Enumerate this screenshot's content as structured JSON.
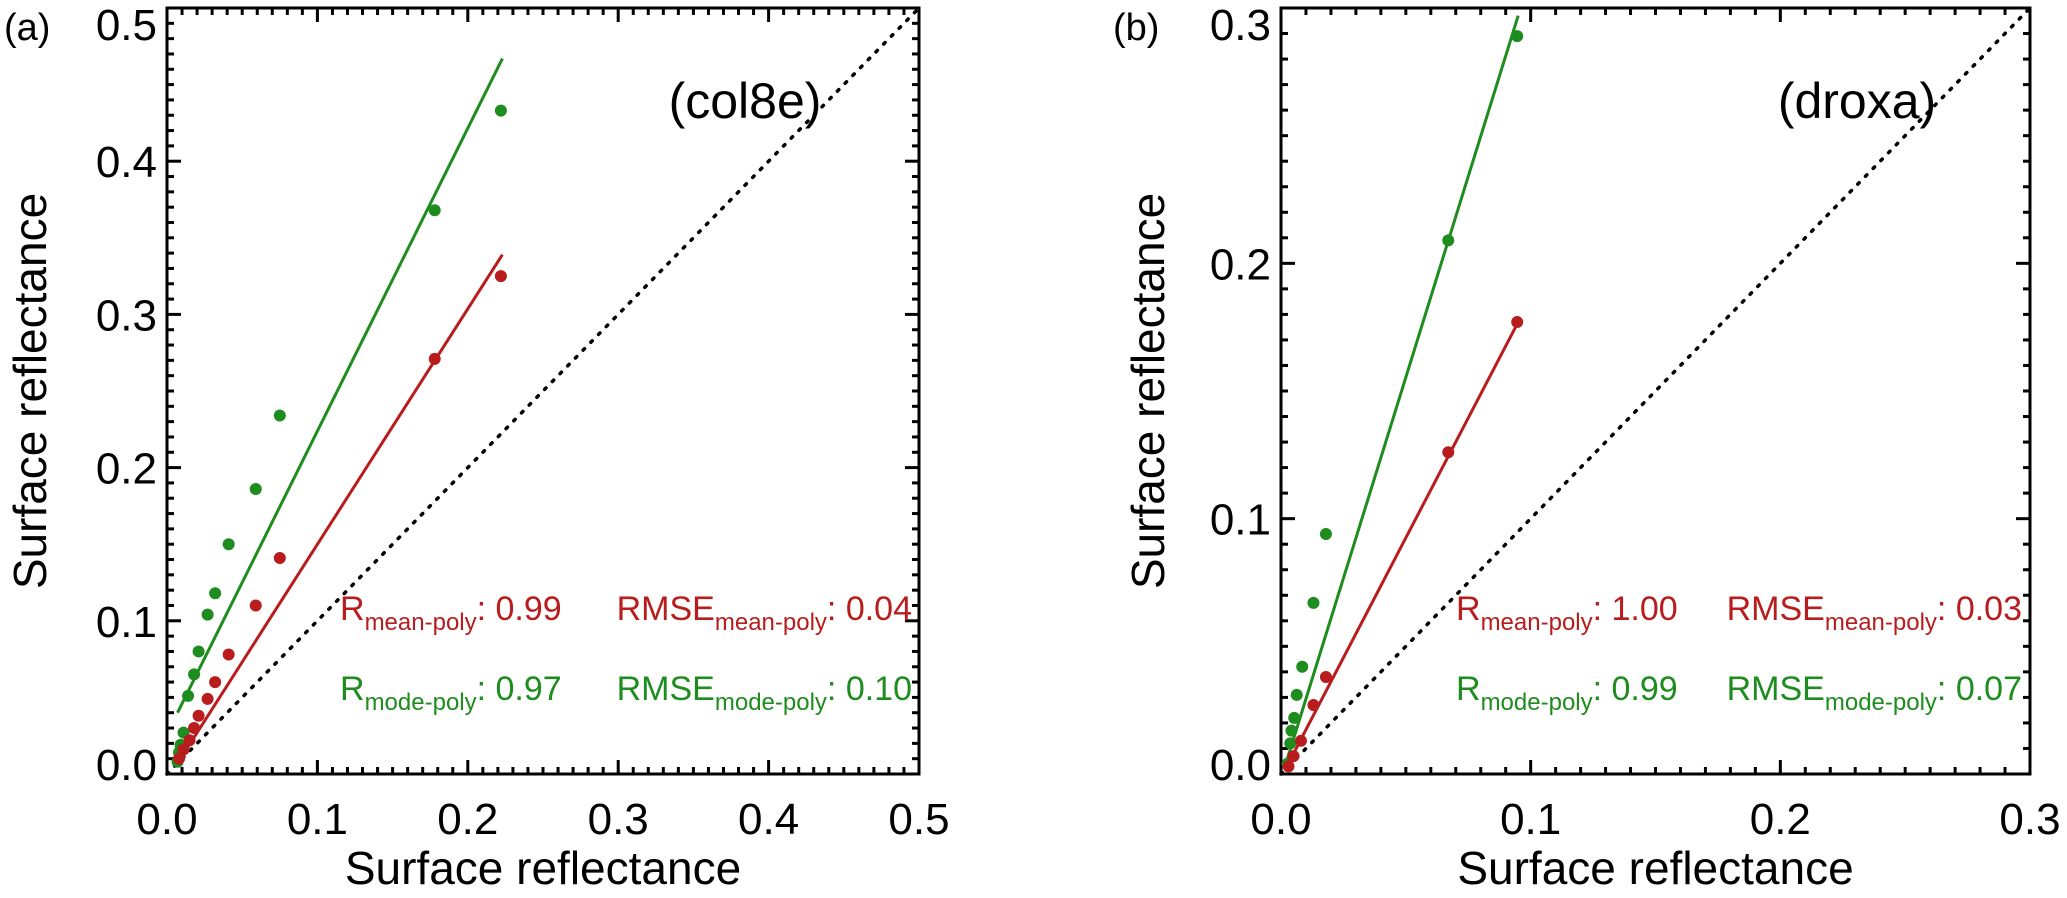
{
  "colors": {
    "mean": "#b81c1c",
    "mode": "#1e8c1e",
    "axis": "#000000"
  },
  "chart_data": [
    {
      "type": "scatter",
      "panel_label": "(a)",
      "title": "(col8e)",
      "xlabel": "Surface reflectance",
      "ylabel": "Surface reflectance",
      "xlim": [
        0,
        0.5
      ],
      "ylim": [
        0,
        0.5
      ],
      "major_step": 0.1,
      "minor_step": 0.01,
      "xticks": [
        "0.0",
        "0.1",
        "0.2",
        "0.3",
        "0.4",
        "0.5"
      ],
      "yticks": [
        "0.0",
        "0.1",
        "0.2",
        "0.3",
        "0.4",
        "0.5"
      ],
      "one_to_one_line": true,
      "series": [
        {
          "name": "mode-poly",
          "color_key": "mode",
          "x": [
            0.222,
            0.178,
            0.075,
            0.059,
            0.041,
            0.032,
            0.027,
            0.021,
            0.018,
            0.014,
            0.011,
            0.009,
            0.008,
            0.007
          ],
          "y": [
            0.433,
            0.368,
            0.234,
            0.186,
            0.15,
            0.118,
            0.104,
            0.08,
            0.065,
            0.051,
            0.027,
            0.019,
            0.014,
            0.008
          ],
          "fit": [
            [
              0.007,
              0.04
            ],
            [
              0.223,
              0.467
            ]
          ]
        },
        {
          "name": "mean-poly",
          "color_key": "mean",
          "x": [
            0.222,
            0.178,
            0.075,
            0.059,
            0.041,
            0.032,
            0.027,
            0.021,
            0.018,
            0.015,
            0.011,
            0.008
          ],
          "y": [
            0.325,
            0.271,
            0.141,
            0.11,
            0.078,
            0.06,
            0.049,
            0.038,
            0.03,
            0.022,
            0.016,
            0.01
          ],
          "fit": [
            [
              0.007,
              0.007
            ],
            [
              0.223,
              0.339
            ]
          ]
        }
      ],
      "annotations": [
        {
          "color_key": "mean",
          "r": "R",
          "r_sub": "mean-poly",
          "r_val": ": 0.99",
          "rmse": "RMSE",
          "rmse_sub": "mean-poly",
          "rmse_val": ": 0.04"
        },
        {
          "color_key": "mode",
          "r": "R",
          "r_sub": "mode-poly",
          "r_val": ": 0.97",
          "rmse": "RMSE",
          "rmse_sub": "mode-poly",
          "rmse_val": ": 0.10"
        }
      ]
    },
    {
      "type": "scatter",
      "panel_label": "(b)",
      "title": "(droxa)",
      "xlabel": "Surface reflectance",
      "ylabel": "Surface reflectance",
      "xlim": [
        0,
        0.3
      ],
      "ylim": [
        0,
        0.3
      ],
      "major_step": 0.1,
      "minor_step": 0.01,
      "xticks": [
        "0.0",
        "0.1",
        "0.2",
        "0.3"
      ],
      "yticks": [
        "0.0",
        "0.1",
        "0.2",
        "0.3"
      ],
      "one_to_one_line": true,
      "series": [
        {
          "name": "mode-poly",
          "color_key": "mode",
          "x": [
            0.0946,
            0.067,
            0.018,
            0.013,
            0.0085,
            0.0063,
            0.0053,
            0.0042,
            0.0037,
            0.0026
          ],
          "y": [
            0.289,
            0.209,
            0.094,
            0.067,
            0.042,
            0.031,
            0.022,
            0.017,
            0.012,
            0.004
          ],
          "fit": [
            [
              0.0016,
              0.003
            ],
            [
              0.095,
              0.297
            ]
          ]
        },
        {
          "name": "mean-poly",
          "color_key": "mean",
          "x": [
            0.0946,
            0.067,
            0.018,
            0.013,
            0.008,
            0.005,
            0.003
          ],
          "y": [
            0.177,
            0.126,
            0.038,
            0.027,
            0.013,
            0.007,
            0.003
          ],
          "fit": [
            [
              0.0016,
              0.0016
            ],
            [
              0.095,
              0.177
            ]
          ]
        }
      ],
      "annotations": [
        {
          "color_key": "mean",
          "r": "R",
          "r_sub": "mean-poly",
          "r_val": ": 1.00",
          "rmse": "RMSE",
          "rmse_sub": "mean-poly",
          "rmse_val": ": 0.03"
        },
        {
          "color_key": "mode",
          "r": "R",
          "r_sub": "mode-poly",
          "r_val": ": 0.99",
          "rmse": "RMSE",
          "rmse_sub": "mode-poly",
          "rmse_val": ": 0.07"
        }
      ]
    }
  ]
}
